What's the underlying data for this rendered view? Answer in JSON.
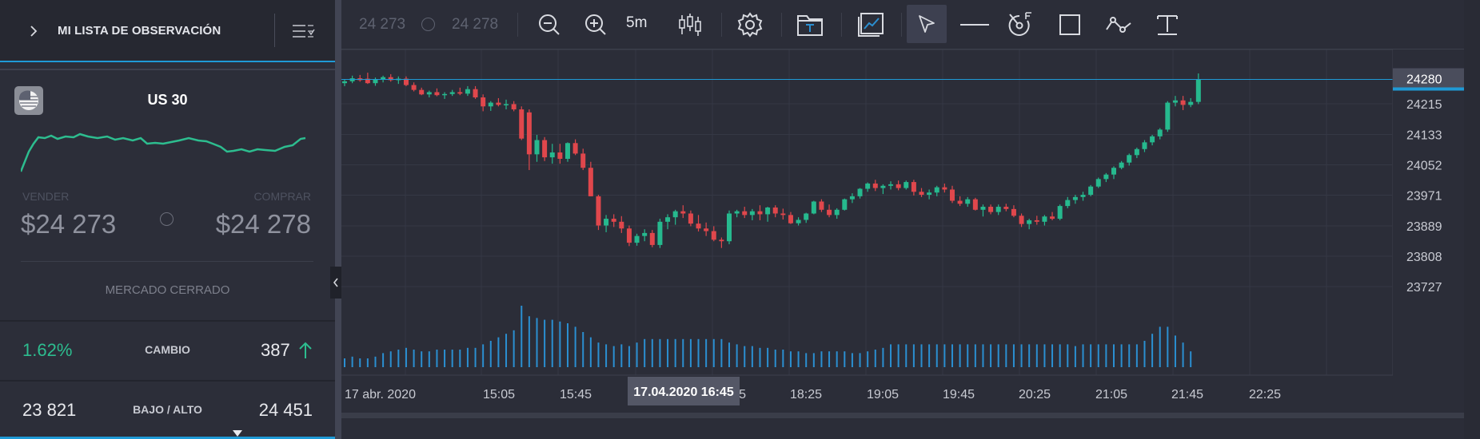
{
  "watchlist": {
    "title": "MI LISTA DE OBSERVACIÓN",
    "icons": {
      "expand": "chevron-right-icon",
      "menu": "list-menu-icon"
    }
  },
  "instrument": {
    "name": "US 30",
    "flag_icon": "us-flag-icon",
    "sell_label": "VENDER",
    "buy_label": "COMPRAR",
    "sell_price": "$24 273",
    "buy_price": "$24 278",
    "market_status": "MERCADO CERRADO",
    "change_pct": "1.62%",
    "change_label": "CAMBIO",
    "change_value": "387",
    "range_label": "BAJO / ALTO",
    "low": "23 821",
    "high": "24 451",
    "spark_color": "#2dbd8f"
  },
  "toolbar": {
    "sell": "24 273",
    "buy": "24 278",
    "interval": "5m",
    "icons": [
      "zoom-out-icon",
      "zoom-in-icon",
      "candlestick-type-icon",
      "settings-gear-icon",
      "template-folder-icon",
      "indicators-chart-icon",
      "cursor-arrow-icon",
      "horizontal-line-icon",
      "fibonacci-icon",
      "rectangle-icon",
      "trend-line-icon",
      "text-tool-icon"
    ]
  },
  "colors": {
    "up": "#26b98e",
    "down": "#e0474c",
    "volume": "#2b8fd1",
    "price_line": "#1f9ad6",
    "accent": "#1f9ad6"
  },
  "chart_data": {
    "type": "candlestick",
    "current_price": 24280,
    "y_ticks": [
      "24215",
      "24133",
      "24052",
      "23971",
      "23889",
      "23808",
      "23727"
    ],
    "y_tick_values": [
      24215,
      24133,
      24052,
      23971,
      23889,
      23808,
      23727
    ],
    "x_ticks": [
      "17 abr. 2020",
      "15:05",
      "15:45",
      "17:45",
      "18:25",
      "19:05",
      "19:45",
      "20:25",
      "21:05",
      "21:45",
      "22:25"
    ],
    "crosshair_time": "17.04.2020 16:45",
    "ohlc": [
      [
        24270,
        24280,
        24262,
        24275
      ],
      [
        24275,
        24290,
        24270,
        24283
      ],
      [
        24283,
        24292,
        24274,
        24278
      ],
      [
        24282,
        24298,
        24268,
        24270
      ],
      [
        24270,
        24285,
        24263,
        24280
      ],
      [
        24280,
        24290,
        24272,
        24286
      ],
      [
        24286,
        24294,
        24274,
        24278
      ],
      [
        24278,
        24288,
        24268,
        24282
      ],
      [
        24282,
        24288,
        24262,
        24265
      ],
      [
        24265,
        24272,
        24248,
        24252
      ],
      [
        24252,
        24258,
        24238,
        24240
      ],
      [
        24240,
        24250,
        24232,
        24246
      ],
      [
        24246,
        24256,
        24235,
        24238
      ],
      [
        24238,
        24246,
        24228,
        24241
      ],
      [
        24241,
        24252,
        24236,
        24246
      ],
      [
        24246,
        24258,
        24238,
        24242
      ],
      [
        24242,
        24262,
        24236,
        24254
      ],
      [
        24254,
        24262,
        24228,
        24232
      ],
      [
        24232,
        24240,
        24195,
        24208
      ],
      [
        24208,
        24222,
        24196,
        24218
      ],
      [
        24218,
        24230,
        24208,
        24212
      ],
      [
        24212,
        24226,
        24200,
        24214
      ],
      [
        24214,
        24222,
        24195,
        24200
      ],
      [
        24200,
        24208,
        24118,
        24122
      ],
      [
        24192,
        24200,
        24038,
        24080
      ],
      [
        24080,
        24132,
        24060,
        24118
      ],
      [
        24118,
        24126,
        24062,
        24072
      ],
      [
        24072,
        24108,
        24055,
        24085
      ],
      [
        24085,
        24108,
        24055,
        24068
      ],
      [
        24068,
        24112,
        24060,
        24110
      ],
      [
        24110,
        24120,
        24078,
        24082
      ],
      [
        24082,
        24095,
        24038,
        24044
      ],
      [
        24044,
        24060,
        23968,
        23968
      ],
      [
        23968,
        23972,
        23878,
        23890
      ],
      [
        23890,
        23918,
        23872,
        23908
      ],
      [
        23908,
        23920,
        23886,
        23900
      ],
      [
        23900,
        23915,
        23870,
        23882
      ],
      [
        23882,
        23890,
        23835,
        23844
      ],
      [
        23844,
        23868,
        23836,
        23862
      ],
      [
        23862,
        23880,
        23848,
        23870
      ],
      [
        23870,
        23878,
        23832,
        23838
      ],
      [
        23838,
        23908,
        23830,
        23900
      ],
      [
        23900,
        23920,
        23880,
        23912
      ],
      [
        23912,
        23932,
        23892,
        23928
      ],
      [
        23928,
        23944,
        23910,
        23922
      ],
      [
        23922,
        23930,
        23888,
        23895
      ],
      [
        23895,
        23918,
        23874,
        23882
      ],
      [
        23882,
        23898,
        23862,
        23875
      ],
      [
        23875,
        23888,
        23848,
        23852
      ],
      [
        23852,
        23858,
        23830,
        23848
      ],
      [
        23848,
        23930,
        23840,
        23922
      ],
      [
        23922,
        23932,
        23912,
        23928
      ],
      [
        23928,
        23940,
        23910,
        23918
      ],
      [
        23918,
        23934,
        23904,
        23928
      ],
      [
        23928,
        23944,
        23904,
        23920
      ],
      [
        23920,
        23940,
        23900,
        23938
      ],
      [
        23938,
        23944,
        23912,
        23922
      ],
      [
        23922,
        23935,
        23906,
        23918
      ],
      [
        23918,
        23926,
        23894,
        23896
      ],
      [
        23896,
        23912,
        23890,
        23905
      ],
      [
        23905,
        23924,
        23897,
        23922
      ],
      [
        23922,
        23956,
        23920,
        23954
      ],
      [
        23954,
        23960,
        23926,
        23932
      ],
      [
        23932,
        23946,
        23912,
        23918
      ],
      [
        23918,
        23936,
        23908,
        23932
      ],
      [
        23932,
        23962,
        23930,
        23960
      ],
      [
        23960,
        23976,
        23950,
        23968
      ],
      [
        23968,
        23990,
        23962,
        23988
      ],
      [
        23988,
        24005,
        23980,
        24002
      ],
      [
        24002,
        24012,
        23982,
        23990
      ],
      [
        23990,
        24000,
        23974,
        23996
      ],
      [
        23996,
        24008,
        23986,
        24000
      ],
      [
        24000,
        24010,
        23984,
        23990
      ],
      [
        23990,
        24010,
        23986,
        24006
      ],
      [
        24006,
        24012,
        23970,
        23980
      ],
      [
        23980,
        23990,
        23966,
        23972
      ],
      [
        23972,
        23986,
        23960,
        23978
      ],
      [
        23978,
        23996,
        23968,
        23992
      ],
      [
        23992,
        24002,
        23978,
        23986
      ],
      [
        23986,
        23996,
        23950,
        23956
      ],
      [
        23956,
        23968,
        23942,
        23948
      ],
      [
        23948,
        23966,
        23940,
        23960
      ],
      [
        23960,
        23964,
        23930,
        23932
      ],
      [
        23932,
        23946,
        23914,
        23940
      ],
      [
        23940,
        23946,
        23920,
        23926
      ],
      [
        23926,
        23946,
        23918,
        23940
      ],
      [
        23940,
        23948,
        23928,
        23934
      ],
      [
        23934,
        23944,
        23912,
        23916
      ],
      [
        23916,
        23922,
        23886,
        23894
      ],
      [
        23894,
        23908,
        23880,
        23904
      ],
      [
        23904,
        23916,
        23892,
        23900
      ],
      [
        23900,
        23918,
        23890,
        23914
      ],
      [
        23914,
        23926,
        23904,
        23908
      ],
      [
        23908,
        23946,
        23904,
        23942
      ],
      [
        23942,
        23966,
        23936,
        23958
      ],
      [
        23958,
        23972,
        23948,
        23966
      ],
      [
        23966,
        23980,
        23956,
        23972
      ],
      [
        23972,
        23998,
        23968,
        23994
      ],
      [
        23994,
        24018,
        23990,
        24014
      ],
      [
        24014,
        24030,
        24006,
        24026
      ],
      [
        24026,
        24048,
        24014,
        24044
      ],
      [
        24044,
        24062,
        24040,
        24058
      ],
      [
        24058,
        24082,
        24050,
        24078
      ],
      [
        24078,
        24098,
        24070,
        24094
      ],
      [
        24094,
        24118,
        24086,
        24112
      ],
      [
        24112,
        24132,
        24104,
        24128
      ],
      [
        24128,
        24150,
        24120,
        24146
      ],
      [
        24146,
        24222,
        24140,
        24218
      ],
      [
        24218,
        24236,
        24208,
        24224
      ],
      [
        24224,
        24236,
        24198,
        24212
      ],
      [
        24212,
        24230,
        24206,
        24220
      ],
      [
        24220,
        24296,
        24214,
        24280
      ]
    ],
    "volume": [
      5,
      6,
      5,
      5,
      6,
      8,
      9,
      10,
      11,
      10,
      9,
      9,
      10,
      10,
      10,
      10,
      11,
      11,
      13,
      15,
      17,
      19,
      21,
      35,
      29,
      28,
      27,
      27,
      26,
      25,
      23,
      20,
      17,
      14,
      13,
      12,
      13,
      12,
      14,
      16,
      16,
      16,
      16,
      16,
      16,
      16,
      16,
      16,
      16,
      16,
      14,
      13,
      12,
      12,
      11,
      11,
      10,
      10,
      9,
      9,
      8,
      8,
      9,
      9,
      9,
      9,
      8,
      8,
      9,
      10,
      11,
      13,
      13,
      13,
      13,
      13,
      13,
      13,
      13,
      13,
      13,
      13,
      13,
      13,
      13,
      13,
      13,
      13,
      13,
      13,
      13,
      13,
      13,
      13,
      13,
      12,
      13,
      13,
      13,
      13,
      13,
      13,
      13,
      13,
      15,
      19,
      23,
      23,
      18,
      14,
      9
    ]
  }
}
